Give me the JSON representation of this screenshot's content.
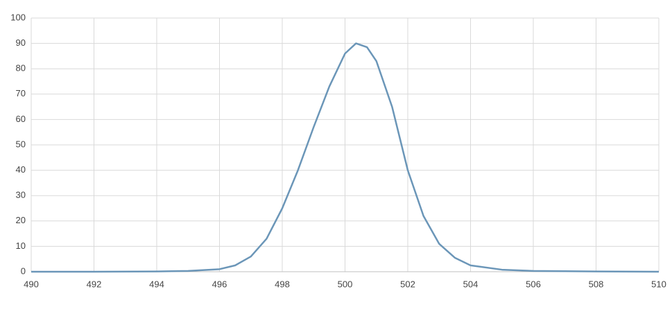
{
  "chart_data": {
    "type": "line",
    "x": [
      490,
      492,
      494,
      495,
      496,
      496.5,
      497,
      497.5,
      498,
      498.5,
      499,
      499.5,
      500,
      500.35,
      500.7,
      501,
      501.5,
      502,
      502.5,
      503,
      503.5,
      504,
      505,
      506,
      508,
      510
    ],
    "series": [
      {
        "color": "#6b96b8",
        "values": [
          0,
          0,
          0.1,
          0.3,
          1,
          2.5,
          6,
          13,
          25,
          40,
          57,
          73,
          86,
          90,
          88.5,
          83,
          65,
          40,
          22,
          11,
          5.5,
          2.5,
          0.8,
          0.3,
          0.1,
          0
        ]
      }
    ],
    "xlim": [
      490,
      510
    ],
    "xticks": [
      490,
      492,
      494,
      496,
      498,
      500,
      502,
      504,
      506,
      508,
      510
    ],
    "ylim": [
      0,
      100
    ],
    "yticks": [
      0,
      10,
      20,
      30,
      40,
      50,
      60,
      70,
      80,
      90,
      100
    ],
    "grid": true
  }
}
